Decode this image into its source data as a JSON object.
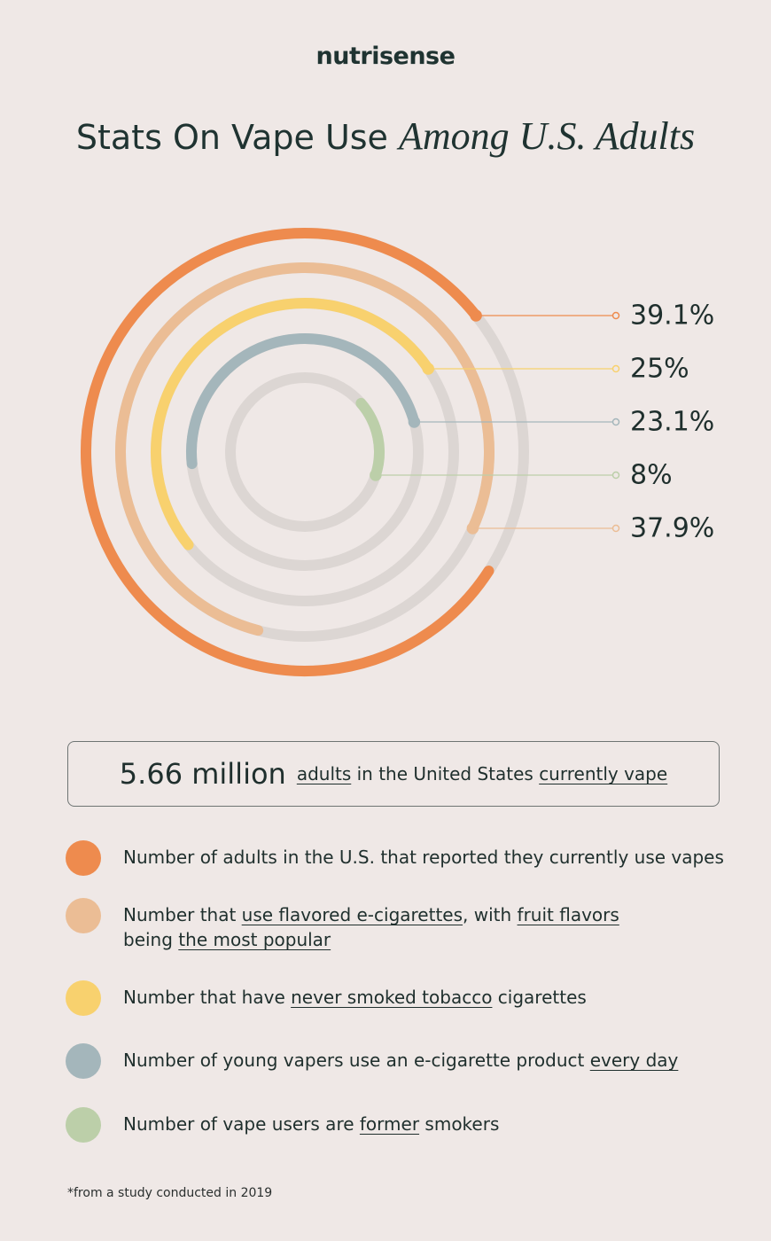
{
  "brand": "nutrisense",
  "title": {
    "plain": "Stats On Vape Use",
    "accent": "Among U.S. Adults"
  },
  "chart_data": {
    "type": "radial-bar",
    "series": [
      {
        "value": 39.1,
        "label": "39.1%",
        "color": "#ee8b4e"
      },
      {
        "value": 37.9,
        "label": "37.9%",
        "color": "#ebbd95"
      },
      {
        "value": 25,
        "label": "25%",
        "color": "#f8d16e"
      },
      {
        "value": 23.1,
        "label": "23.1%",
        "color": "#a4b6bb"
      },
      {
        "value": 8,
        "label": "8%",
        "color": "#bccfa9"
      }
    ],
    "track_color": "#dcd6d3"
  },
  "callout": {
    "big": "5.66 million",
    "t1": "adults",
    "t2": " in the United States ",
    "t3": "currently vape"
  },
  "legend": {
    "item1": {
      "text": "Number of adults in the U.S. that reported they currently use vapes",
      "color": "#ee8b4e"
    },
    "item2": {
      "a": "Number that ",
      "b": "use flavored e-cigarettes",
      "c": ", with ",
      "d": "fruit flavors",
      "e": "being ",
      "f": "the most popular",
      "color": "#ebbd95"
    },
    "item3": {
      "a": "Number that have ",
      "b": "never smoked tobacco",
      "c": " cigarettes",
      "color": "#f8d16e"
    },
    "item4": {
      "a": "Number of young vapers use an e-cigarette product ",
      "b": "every day",
      "color": "#a4b6bb"
    },
    "item5": {
      "a": "Number of vape users are ",
      "b": "former",
      "c": " smokers",
      "color": "#bccfa9"
    }
  },
  "footnote": "*from a study conducted in 2019"
}
